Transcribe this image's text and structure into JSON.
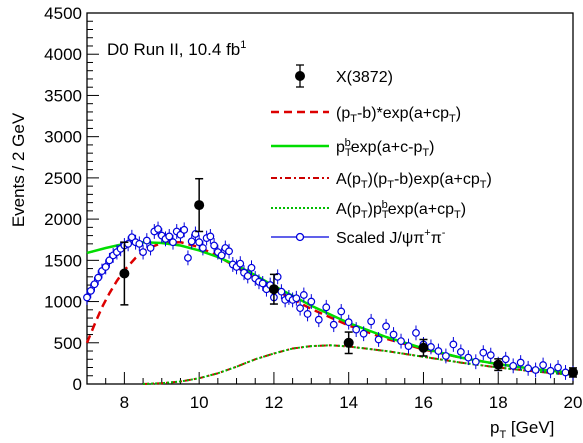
{
  "chart_data": {
    "type": "line",
    "annotation": "D0 Run II, 10.4 fb",
    "annotation_sup": "1",
    "xlabel": "p",
    "xlabel_sub": "T",
    "xlabel_unit": " [GeV]",
    "ylabel": "Events / 2 GeV",
    "xlim": [
      7,
      20
    ],
    "ylim": [
      0,
      4500
    ],
    "x_ticks": [
      8,
      10,
      12,
      14,
      16,
      18,
      20
    ],
    "y_ticks": [
      0,
      500,
      1000,
      1500,
      2000,
      2500,
      3000,
      3500,
      4000,
      4500
    ],
    "grid": false,
    "legend_position": "top-right",
    "series": [
      {
        "name": "X(3872)",
        "kind": "points-with-errors",
        "color": "#000000",
        "points": [
          {
            "x": 8.0,
            "y": 1340,
            "err": 380
          },
          {
            "x": 10.0,
            "y": 2170,
            "err": 320
          },
          {
            "x": 12.0,
            "y": 1150,
            "err": 180
          },
          {
            "x": 14.0,
            "y": 500,
            "err": 130
          },
          {
            "x": 16.0,
            "y": 440,
            "err": 100
          },
          {
            "x": 18.0,
            "y": 235,
            "err": 70
          },
          {
            "x": 20.0,
            "y": 140,
            "err": 55
          }
        ]
      },
      {
        "name": "(p_T-b)*exp(a+cp_T)",
        "kind": "dashed",
        "color": "#dd0000",
        "x": [
          7.0,
          7.2,
          7.4,
          7.6,
          7.8,
          8.0,
          8.3,
          8.6,
          9.0,
          9.5,
          10.0,
          10.5,
          11.0,
          11.5,
          12.0,
          13.0,
          14.0,
          15.0,
          16.0,
          17.0,
          18.0,
          19.0,
          20.0
        ],
        "y": [
          500,
          720,
          930,
          1100,
          1250,
          1380,
          1530,
          1640,
          1710,
          1720,
          1660,
          1550,
          1420,
          1280,
          1150,
          910,
          710,
          550,
          420,
          320,
          240,
          180,
          135
        ]
      },
      {
        "name": "p_T^b exp(a+c-p_T)",
        "kind": "solid",
        "color": "#00dd00",
        "x": [
          7.0,
          7.5,
          8.0,
          8.5,
          9.0,
          9.5,
          10.0,
          10.5,
          11.0,
          11.5,
          12.0,
          13.0,
          14.0,
          15.0,
          16.0,
          17.0,
          18.0,
          19.0,
          20.0
        ],
        "y": [
          1590,
          1650,
          1700,
          1720,
          1710,
          1680,
          1620,
          1540,
          1440,
          1320,
          1190,
          950,
          740,
          570,
          430,
          320,
          240,
          180,
          135
        ]
      },
      {
        "name": "A(p_T)(p_T-b)exp(a+cp_T)",
        "kind": "dashdot",
        "color": "#cc0000",
        "x": [
          8.5,
          9.0,
          9.5,
          10.0,
          10.5,
          11.0,
          11.5,
          12.0,
          12.5,
          13.0,
          13.5,
          14.0,
          15.0,
          16.0,
          17.0,
          18.0,
          19.0,
          20.0
        ],
        "y": [
          0,
          10,
          30,
          70,
          130,
          210,
          300,
          370,
          430,
          460,
          470,
          455,
          400,
          330,
          260,
          200,
          150,
          110
        ]
      },
      {
        "name": "A(p_T)p_T^b exp(a+cp_T)",
        "kind": "dotted",
        "color": "#00bb00",
        "x": [
          8.5,
          9.0,
          9.5,
          10.0,
          10.5,
          11.0,
          11.5,
          12.0,
          12.5,
          13.0,
          13.5,
          14.0,
          15.0,
          16.0,
          17.0,
          18.0,
          19.0,
          20.0
        ],
        "y": [
          0,
          10,
          30,
          70,
          130,
          210,
          300,
          370,
          430,
          460,
          470,
          455,
          400,
          330,
          260,
          200,
          150,
          110
        ]
      },
      {
        "name": "Scaled J/ψπ+π-",
        "kind": "open-circles",
        "color": "#0000dd",
        "x": [
          7.0,
          7.1,
          7.2,
          7.3,
          7.4,
          7.5,
          7.6,
          7.7,
          7.8,
          7.9,
          8.0,
          8.1,
          8.2,
          8.3,
          8.4,
          8.5,
          8.6,
          8.7,
          8.8,
          8.9,
          9.0,
          9.1,
          9.2,
          9.3,
          9.4,
          9.5,
          9.6,
          9.7,
          9.8,
          9.9,
          10.0,
          10.1,
          10.2,
          10.3,
          10.4,
          10.5,
          10.6,
          10.7,
          10.8,
          10.9,
          11.0,
          11.1,
          11.2,
          11.3,
          11.4,
          11.5,
          11.6,
          11.7,
          11.8,
          11.9,
          12.0,
          12.1,
          12.2,
          12.3,
          12.4,
          12.5,
          12.6,
          12.7,
          12.8,
          12.9,
          13.0,
          13.2,
          13.4,
          13.6,
          13.8,
          14.0,
          14.2,
          14.4,
          14.6,
          14.8,
          15.0,
          15.2,
          15.4,
          15.6,
          15.8,
          16.0,
          16.2,
          16.4,
          16.6,
          16.8,
          17.0,
          17.2,
          17.4,
          17.6,
          17.8,
          18.0,
          18.2,
          18.4,
          18.6,
          18.8,
          19.0,
          19.2,
          19.4,
          19.6,
          19.8,
          20.0
        ],
        "y": [
          1050,
          1130,
          1210,
          1290,
          1370,
          1420,
          1500,
          1560,
          1600,
          1640,
          1680,
          1700,
          1780,
          1720,
          1700,
          1600,
          1740,
          1650,
          1850,
          1880,
          1800,
          1760,
          1790,
          1720,
          1850,
          1810,
          1870,
          1530,
          1730,
          1820,
          1720,
          1650,
          1770,
          1790,
          1680,
          1600,
          1560,
          1650,
          1610,
          1450,
          1420,
          1460,
          1350,
          1310,
          1410,
          1280,
          1240,
          1220,
          1150,
          1200,
          1050,
          1300,
          1120,
          1020,
          1050,
          1020,
          1040,
          920,
          1080,
          850,
          1000,
          780,
          930,
          720,
          880,
          750,
          660,
          610,
          760,
          540,
          700,
          600,
          520,
          460,
          620,
          480,
          450,
          400,
          340,
          480,
          390,
          320,
          270,
          380,
          350,
          240,
          300,
          220,
          260,
          190,
          170,
          230,
          160,
          200,
          140,
          130
        ],
        "err": 90
      }
    ]
  },
  "legend": [
    {
      "label": "X(3872)"
    },
    {
      "label": "(pT-b)*exp(a+cpT)"
    },
    {
      "label": "pTbexp(a+c-pT)"
    },
    {
      "label": "A(pT)(pT-b)exp(a+cpT)"
    },
    {
      "label": "A(pT)pTbexp(a+cpT)"
    },
    {
      "label": "Scaled  J/ψπ+π-"
    }
  ]
}
